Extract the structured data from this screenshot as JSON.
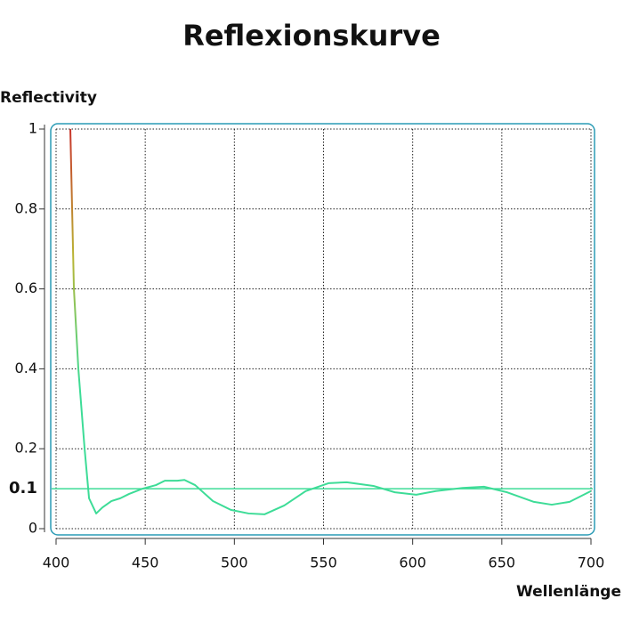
{
  "chart_data": {
    "type": "line",
    "title": "Reflexionskurve",
    "y_label": "Reflectivity",
    "x_label": "Wellenlänge",
    "x": [
      408,
      410,
      412.5,
      416,
      418.5,
      422.5,
      426,
      431,
      436,
      441,
      448.5,
      456,
      461,
      468,
      472,
      478,
      488,
      498,
      508,
      517,
      528,
      540,
      553,
      563,
      578,
      590,
      602,
      613,
      628,
      640,
      653,
      668,
      678,
      688,
      700
    ],
    "values": [
      1,
      0.6,
      0.4,
      0.2,
      0.076,
      0.038,
      0.053,
      0.069,
      0.076,
      0.087,
      0.1,
      0.109,
      0.12,
      0.12,
      0.122,
      0.109,
      0.069,
      0.047,
      0.038,
      0.036,
      0.058,
      0.094,
      0.114,
      0.116,
      0.107,
      0.091,
      0.085,
      0.094,
      0.102,
      0.105,
      0.091,
      0.067,
      0.06,
      0.067,
      0.094
    ],
    "colors": [
      "#c8332a",
      "#b9b534",
      "#3ddc97",
      "#3ddc97"
    ],
    "reference_line": {
      "value": 0.1,
      "label": "0.1",
      "color": "#3ddc97"
    },
    "xlim": [
      400,
      700
    ],
    "xticks": [
      400,
      450,
      500,
      550,
      600,
      650,
      700
    ],
    "ylim": [
      0,
      1
    ],
    "yticks": [
      0,
      0.2,
      0.4,
      0.6,
      0.8,
      1
    ],
    "grid": true
  }
}
